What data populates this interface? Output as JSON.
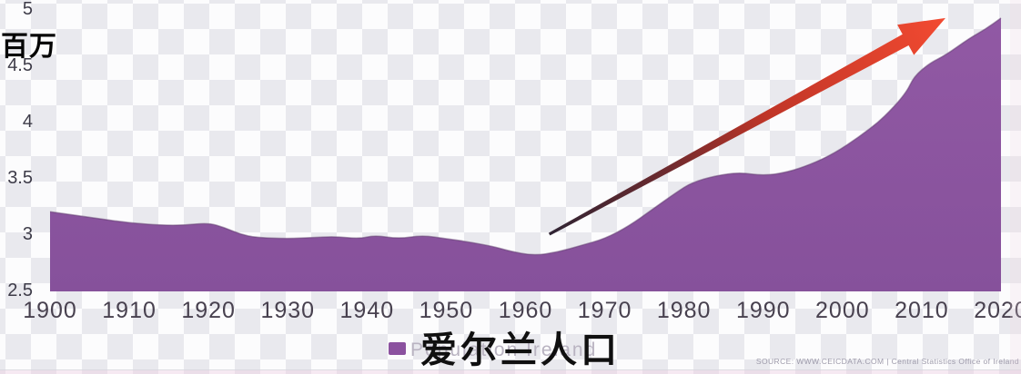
{
  "chart_data": {
    "type": "area",
    "title": "",
    "ylabel": "百万",
    "xlabel": "",
    "xlim": [
      1900,
      2020
    ],
    "ylim": [
      2.5,
      5
    ],
    "grid": false,
    "legend_position": "bottom",
    "series": [
      {
        "name": "爱尔兰人口",
        "x": [
          1900,
          1903,
          1906,
          1910,
          1914,
          1917,
          1920,
          1922,
          1924,
          1926,
          1930,
          1933,
          1936,
          1939,
          1941,
          1944,
          1947,
          1950,
          1953,
          1956,
          1958,
          1961,
          1964,
          1967,
          1970,
          1973,
          1976,
          1979,
          1981,
          1984,
          1987,
          1990,
          1993,
          1996,
          1999,
          2002,
          2005,
          2008,
          2009,
          2011,
          2013,
          2016,
          2018,
          2020
        ],
        "values": [
          3.2,
          3.17,
          3.14,
          3.1,
          3.08,
          3.08,
          3.1,
          3.06,
          3.0,
          2.97,
          2.96,
          2.97,
          2.98,
          2.96,
          2.99,
          2.96,
          2.99,
          2.96,
          2.93,
          2.89,
          2.85,
          2.81,
          2.84,
          2.9,
          2.96,
          3.07,
          3.22,
          3.37,
          3.46,
          3.52,
          3.55,
          3.52,
          3.55,
          3.62,
          3.72,
          3.86,
          4.02,
          4.25,
          4.4,
          4.52,
          4.59,
          4.74,
          4.82,
          4.92
        ]
      }
    ],
    "annotations": [
      {
        "type": "arrow",
        "from_x": 1963,
        "from_y": 3.0,
        "to_x": 2013,
        "to_y": 4.92
      }
    ],
    "colors": {
      "area": "#8e56a1",
      "area_top": "#9159a4",
      "area_bottom": "#86519b",
      "area_edge": "#5e3a6c",
      "arrow_head": "#f24a31",
      "arrow_mid": "#c03527",
      "arrow_tail": "#2f2433"
    }
  },
  "y_axis": {
    "unit_label": "百万",
    "ticks": [
      {
        "label": "5",
        "value": 5
      },
      {
        "label": "4.5",
        "value": 4.5
      },
      {
        "label": "4",
        "value": 4
      },
      {
        "label": "3.5",
        "value": 3.5
      },
      {
        "label": "3",
        "value": 3
      },
      {
        "label": "2.5",
        "value": 2.5
      }
    ]
  },
  "x_axis": {
    "ticks": [
      {
        "label": "1900",
        "value": 1900
      },
      {
        "label": "1910",
        "value": 1910
      },
      {
        "label": "1920",
        "value": 1920
      },
      {
        "label": "1930",
        "value": 1930
      },
      {
        "label": "1940",
        "value": 1940
      },
      {
        "label": "1950",
        "value": 1950
      },
      {
        "label": "1960",
        "value": 1960
      },
      {
        "label": "1970",
        "value": 1970
      },
      {
        "label": "1980",
        "value": 1980
      },
      {
        "label": "1990",
        "value": 1990
      },
      {
        "label": "2000",
        "value": 2000
      },
      {
        "label": "2010",
        "value": 2010
      },
      {
        "label": "2020",
        "value": 2020
      }
    ]
  },
  "legend": {
    "swatch_color": "#8b519f",
    "label": "爱尔兰人口",
    "ghost_label": "Population  Ireland"
  },
  "source_note": "SOURCE: WWW.CEICDATA.COM | Central Statistics Office of Ireland"
}
